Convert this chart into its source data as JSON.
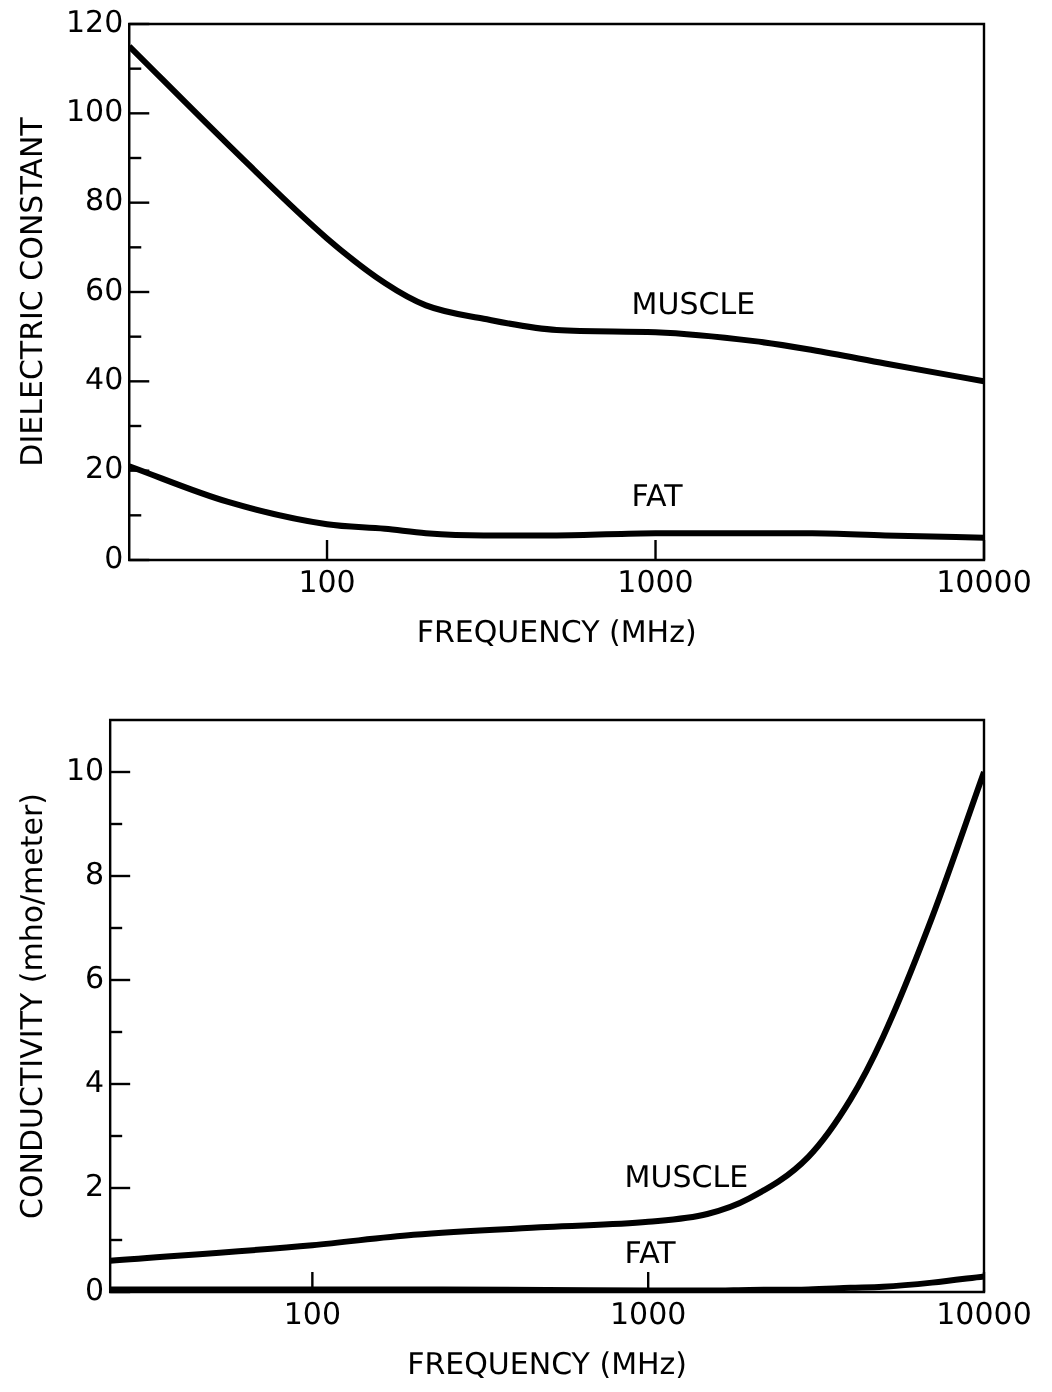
{
  "chart_data": [
    {
      "type": "line",
      "xlabel": "FREQUENCY (MHz)",
      "ylabel": "DIELECTRIC CONSTANT",
      "log": "x",
      "xlim": [
        25,
        10000
      ],
      "xticks": [
        100,
        1000,
        10000
      ],
      "ylim": [
        0,
        120
      ],
      "yticks": [
        0,
        {
          "value": 10,
          "label": null
        },
        20,
        {
          "value": 30,
          "label": null
        },
        40,
        {
          "value": 50,
          "label": null
        },
        60,
        {
          "value": 70,
          "label": null
        },
        80,
        {
          "value": 90,
          "label": null
        },
        100,
        {
          "value": 110,
          "label": null
        },
        120
      ],
      "grid": false,
      "legend": false,
      "marker": "none",
      "line_style": "solid",
      "x": [
        25,
        50,
        100,
        150,
        200,
        300,
        500,
        1000,
        2000,
        3000,
        5000,
        10000
      ],
      "series": [
        {
          "name": "MUSCLE",
          "color": "#000000",
          "values": [
            115,
            93,
            72,
            62,
            57,
            54,
            51.5,
            51,
            49,
            47,
            44,
            40
          ]
        },
        {
          "name": "FAT",
          "color": "#000000",
          "values": [
            21,
            13,
            8,
            7,
            6,
            5.5,
            5.5,
            6,
            6,
            6,
            5.5,
            5
          ]
        }
      ]
    },
    {
      "type": "line",
      "xlabel": "FREQUENCY (MHz)",
      "ylabel": "CONDUCTIVITY (mho/meter)",
      "log": "x",
      "xlim": [
        25,
        10000
      ],
      "xticks": [
        100,
        1000,
        10000
      ],
      "ylim": [
        0,
        11
      ],
      "yticks": [
        0,
        {
          "value": 1,
          "label": null
        },
        2,
        {
          "value": 3,
          "label": null
        },
        4,
        {
          "value": 5,
          "label": null
        },
        6,
        {
          "value": 7,
          "label": null
        },
        8,
        {
          "value": 9,
          "label": null
        },
        10
      ],
      "grid": false,
      "legend": false,
      "marker": "none",
      "line_style": "solid",
      "x": [
        25,
        100,
        200,
        500,
        1000,
        1500,
        2000,
        3000,
        4000,
        5000,
        7000,
        10000
      ],
      "series": [
        {
          "name": "MUSCLE",
          "color": "#000000",
          "values": [
            0.6,
            0.9,
            1.1,
            1.25,
            1.35,
            1.5,
            1.8,
            2.6,
            3.7,
            4.9,
            7.2,
            10
          ]
        },
        {
          "name": "FAT",
          "color": "#000000",
          "values": [
            0.05,
            0.05,
            0.05,
            0.04,
            0.03,
            0.03,
            0.04,
            0.05,
            0.08,
            0.1,
            0.18,
            0.3
          ]
        }
      ]
    }
  ]
}
